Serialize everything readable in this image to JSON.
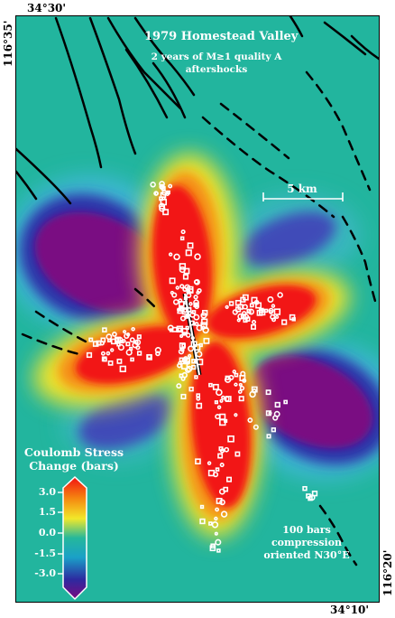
{
  "map": {
    "title": "1979 Homestead Valley",
    "subtitle_line1": "2 years of M≥1 quality A",
    "subtitle_line2": "aftershocks",
    "scale_bar_label": "5 km",
    "note_line1": "100 bars",
    "note_line2": "compression",
    "note_line3": "oriented N30°E",
    "coords": {
      "top_left_lat": "34°30'",
      "top_left_lon": "116°35'",
      "bottom_right_lat": "34°10'",
      "bottom_right_lon": "116°20'"
    }
  },
  "legend": {
    "title_line1": "Coulomb Stress",
    "title_line2": "Change (bars)",
    "ticks": [
      "3.0",
      "1.5",
      "0.0",
      "-1.5",
      "-3.0"
    ],
    "colors": [
      "#7a0a80",
      "#2d2aa0",
      "#1aa0c8",
      "#25b89c",
      "#f2e82a",
      "#f58a10",
      "#f21212"
    ]
  }
}
